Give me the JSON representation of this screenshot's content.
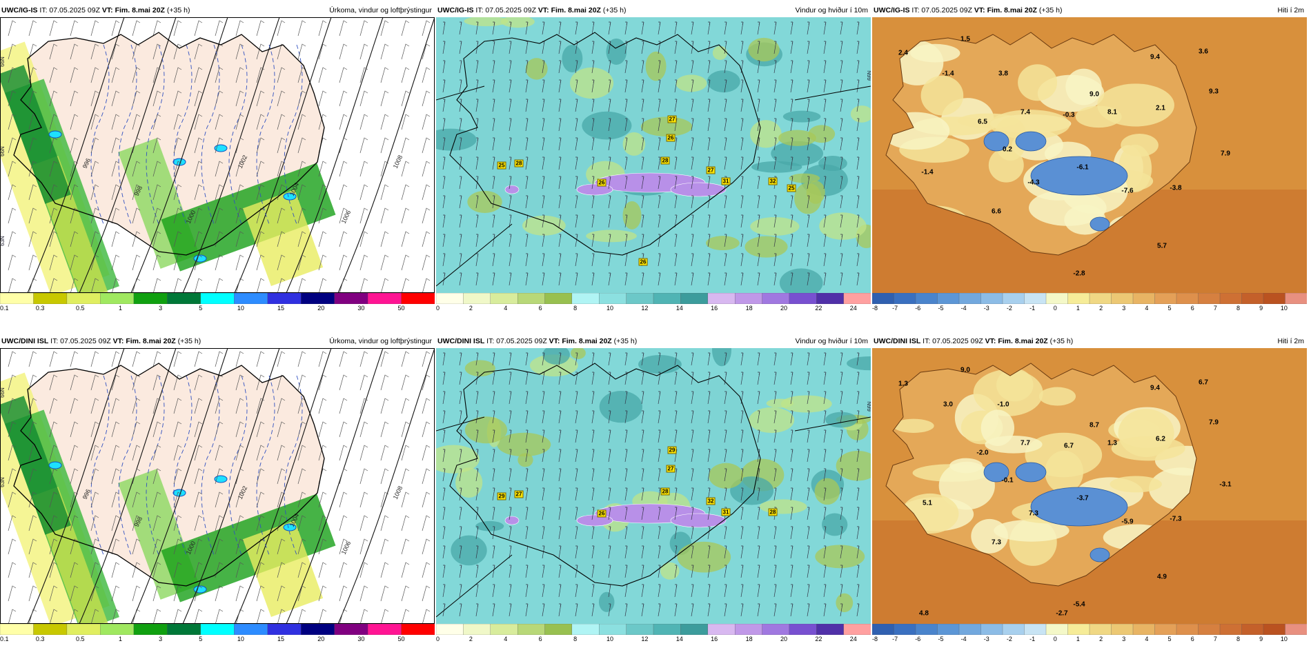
{
  "rows": [
    {
      "id": "ig",
      "panels": [
        {
          "type": "precip",
          "model": "UWC/IG-IS",
          "it": "IT: 07.05.2025 09Z",
          "vt_label": "VT:",
          "vt": "Fim. 8.mai 20Z",
          "lead": "(+35 h)",
          "title": "Úrkoma, vindur og loftþrýstingur",
          "isobars": [
            "996",
            "998",
            "1000",
            "1002",
            "1004",
            "1006",
            "1008"
          ],
          "side_labels": [
            "66N",
            "66N",
            "63N"
          ]
        },
        {
          "type": "wind",
          "model": "UWC/IG-IS",
          "it": "IT: 07.05.2025 09Z",
          "vt_label": "VT:",
          "vt": "Fim. 8.mai 20Z",
          "lead": "(+35 h)",
          "title": "Vindur og hviður í 10m",
          "gusts": [
            "25",
            "28",
            "26",
            "27",
            "26",
            "28",
            "27",
            "31",
            "32",
            "25",
            "26"
          ],
          "side_labels": [
            "66N"
          ]
        },
        {
          "type": "temp",
          "model": "UWC/IG-IS",
          "it": "IT: 07.05.2025 09Z",
          "vt_label": "VT:",
          "vt": "Fim. 8.mai 20Z",
          "lead": "(+35 h)",
          "title": "Hiti í 2m",
          "values": [
            "2.4",
            "1.5",
            "-1.4",
            "3.8",
            "9.4",
            "3.6",
            "9.3",
            "9.0",
            "7.4",
            "-0.3",
            "8.1",
            "2.1",
            "6.5",
            "0.2",
            "-1.4",
            "-4.3",
            "-6.1",
            "-7.6",
            "-3.8",
            "7.9",
            "6.6",
            "5.7",
            "-2.8"
          ]
        }
      ]
    },
    {
      "id": "dini",
      "panels": [
        {
          "type": "precip",
          "model": "UWC/DINI ISL",
          "it": "IT: 07.05.2025 09Z",
          "vt_label": "VT:",
          "vt": "Fim. 8.mai 20Z",
          "lead": "(+35 h)",
          "title": "Úrkoma, vindur og loftþrýstingur",
          "isobars": [
            "996",
            "998",
            "1000",
            "1002",
            "1004",
            "1006",
            "1008"
          ],
          "side_labels": [
            "66N",
            "63N"
          ]
        },
        {
          "type": "wind",
          "model": "UWC/DINI ISL",
          "it": "IT: 07.05.2025 09Z",
          "vt_label": "VT:",
          "vt": "Fim. 8.mai 20Z",
          "lead": "(+35 h)",
          "title": "Vindur og hviður í 10m",
          "gusts": [
            "29",
            "27",
            "26",
            "29",
            "27",
            "28",
            "32",
            "31",
            "28"
          ],
          "side_labels": [
            "66N"
          ]
        },
        {
          "type": "temp",
          "model": "UWC/DINI ISL",
          "it": "IT: 07.05.2025 09Z",
          "vt_label": "VT:",
          "vt": "Fim. 8.mai 20Z",
          "lead": "(+35 h)",
          "title": "Hiti í 2m",
          "values": [
            "1.3",
            "9.0",
            "3.0",
            "-1.0",
            "9.4",
            "6.7",
            "7.9",
            "8.7",
            "7.7",
            "6.7",
            "1.3",
            "6.2",
            "-2.0",
            "-0.1",
            "5.1",
            "7.3",
            "-3.7",
            "-5.9",
            "-7.3",
            "-3.1",
            "7.3",
            "4.9",
            "-5.4",
            "4.8",
            "-2.7"
          ]
        }
      ]
    }
  ],
  "legends": {
    "precip": {
      "colors": [
        "#ffffa8",
        "#c8c800",
        "#e0ee60",
        "#a0e860",
        "#10a010",
        "#007838",
        "#00ffff",
        "#2d8cff",
        "#3030e0",
        "#000080",
        "#800080",
        "#ff1493",
        "#ff0000"
      ],
      "ticks": [
        "0.1",
        "0.3",
        "0.5",
        "1",
        "3",
        "5",
        "10",
        "15",
        "20",
        "30",
        "50"
      ]
    },
    "wind": {
      "colors": [
        "#ffffe8",
        "#f0f8c8",
        "#d8ec9c",
        "#b8d878",
        "#98c050",
        "#b0f4f4",
        "#8ce0e0",
        "#6cc8c8",
        "#50b4b4",
        "#3c9c9c",
        "#d8b8f0",
        "#c098e8",
        "#a078e0",
        "#7850d0",
        "#5030a8",
        "#ffa0a0"
      ],
      "ticks": [
        "0",
        "2",
        "4",
        "6",
        "8",
        "10",
        "12",
        "14",
        "16",
        "18",
        "20",
        "22",
        "24"
      ]
    },
    "temp": {
      "colors": [
        "#3060b0",
        "#3a70c0",
        "#4a84cc",
        "#5c96d6",
        "#72a8de",
        "#8cbce6",
        "#a8d0ee",
        "#c8e4f4",
        "#f4f8c8",
        "#f6ec98",
        "#f0d884",
        "#ecc874",
        "#e8b464",
        "#e4a058",
        "#de904c",
        "#d68040",
        "#ce7034",
        "#c4602a",
        "#ba5220",
        "#e89080"
      ],
      "ticks": [
        "-8",
        "-7",
        "-6",
        "-5",
        "-4",
        "-3",
        "-2",
        "-1",
        "0",
        "1",
        "2",
        "3",
        "4",
        "5",
        "6",
        "7",
        "8",
        "9",
        "10"
      ]
    }
  }
}
